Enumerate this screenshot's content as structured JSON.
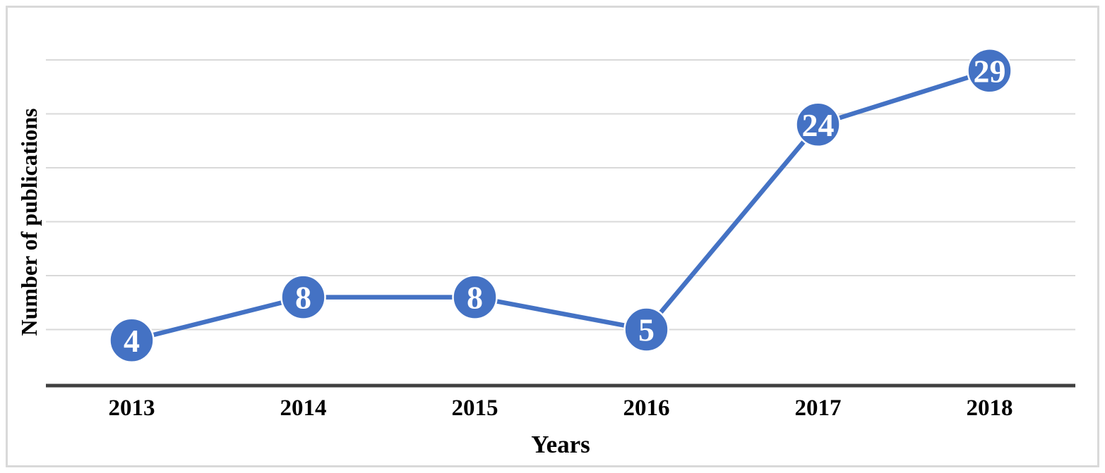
{
  "chart_data": {
    "type": "line",
    "title": "",
    "xlabel": "Years",
    "ylabel": "Number of publications",
    "categories": [
      "2013",
      "2014",
      "2015",
      "2016",
      "2017",
      "2018"
    ],
    "series": [
      {
        "name": "Number of publications",
        "values": [
          4,
          8,
          8,
          5,
          24,
          29
        ]
      }
    ],
    "ylim": [
      0,
      30
    ],
    "ytick_interval": 5,
    "y_tick_labels_visible": false,
    "grid": "horizontal",
    "legend_position": "none",
    "data_labels": "inside-marker",
    "colors": {
      "line": "#4472C4",
      "marker_fill": "#4472C4",
      "marker_ring": "#ffffff",
      "marker_text": "#ffffff",
      "gridline": "#d9d9d9",
      "axis_line": "#404040",
      "frame_border": "#d9d9d9",
      "label_text": "#000000"
    }
  }
}
